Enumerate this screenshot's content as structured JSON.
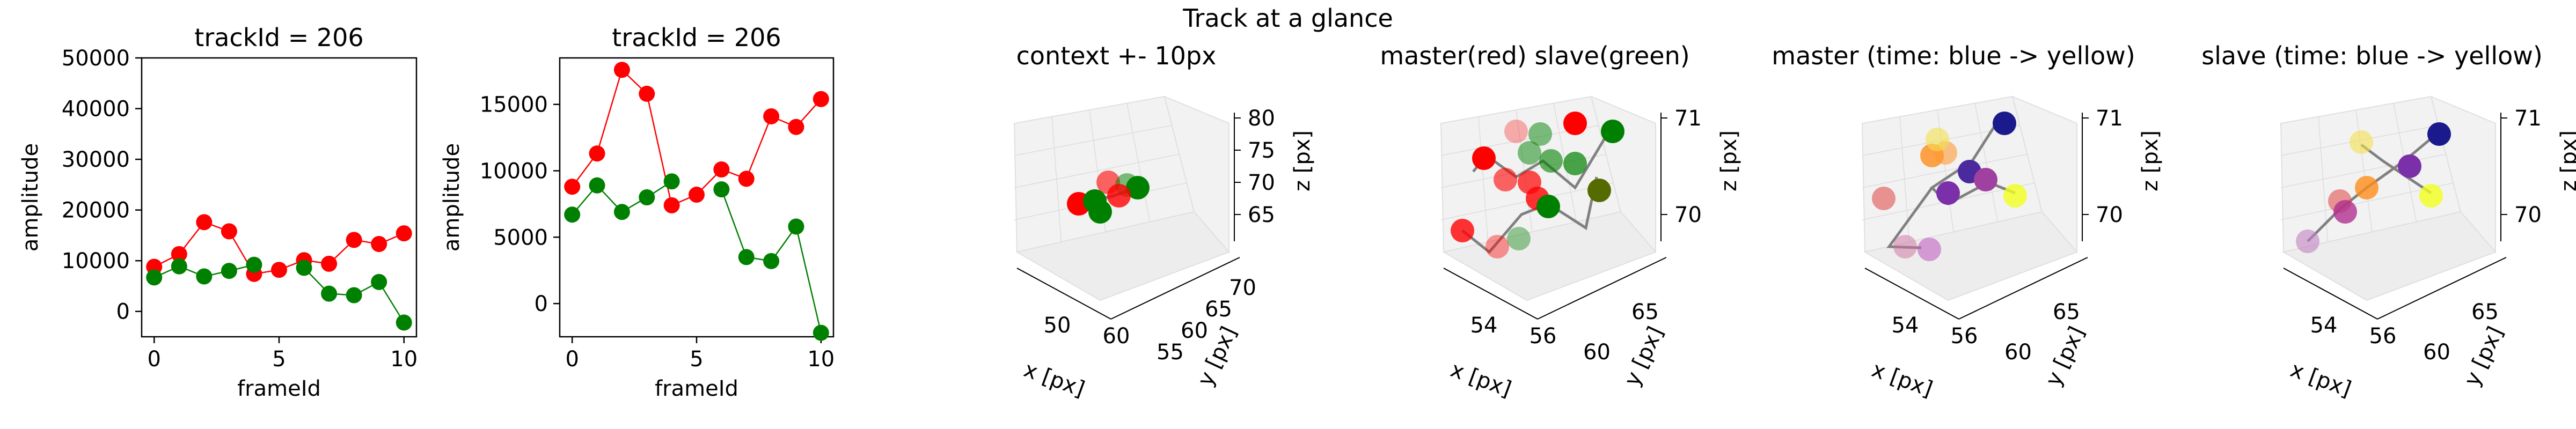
{
  "figure": {
    "suptitle": "Track at a glance"
  },
  "chart_data": [
    {
      "type": "line",
      "title": "trackId = 206",
      "xlabel": "frameId",
      "ylabel": "amplitude",
      "xlim": [
        -0.5,
        10.5
      ],
      "ylim": [
        -5000,
        50000
      ],
      "x_ticks": [
        0,
        5,
        10
      ],
      "y_ticks": [
        0,
        10000,
        20000,
        30000,
        40000,
        50000
      ],
      "x": [
        0,
        1,
        2,
        3,
        4,
        5,
        6,
        7,
        8,
        9,
        10
      ],
      "series": [
        {
          "color": "#ff0000",
          "values": [
            8800,
            11300,
            17600,
            15800,
            7400,
            8200,
            10100,
            9400,
            14100,
            13300,
            15400
          ]
        },
        {
          "color": "#008000",
          "values": [
            6700,
            8900,
            6900,
            8000,
            9200,
            null,
            8600,
            3500,
            3200,
            5800,
            -2200
          ]
        }
      ]
    },
    {
      "type": "line",
      "title": "trackId = 206",
      "xlabel": "frameId",
      "ylabel": "amplitude",
      "xlim": [
        -0.5,
        10.5
      ],
      "ylim": [
        -2500,
        18500
      ],
      "x_ticks": [
        0,
        5,
        10
      ],
      "y_ticks": [
        0,
        5000,
        10000,
        15000
      ],
      "x": [
        0,
        1,
        2,
        3,
        4,
        5,
        6,
        7,
        8,
        9,
        10
      ],
      "series": [
        {
          "color": "#ff0000",
          "values": [
            8800,
            11300,
            17600,
            15800,
            7400,
            8200,
            10100,
            9400,
            14100,
            13300,
            15400
          ]
        },
        {
          "color": "#008000",
          "values": [
            6700,
            8900,
            6900,
            8000,
            9200,
            null,
            8600,
            3500,
            3200,
            5800,
            -2200
          ]
        }
      ]
    },
    {
      "type": "scatter3d",
      "title": "context +- 10px",
      "xlabel": "x [px]",
      "ylabel": "y [px]",
      "zlabel": "z [px]",
      "x_ticks": [
        "50",
        "60"
      ],
      "y_ticks": [
        "55",
        "60",
        "65",
        "70"
      ],
      "z_ticks": [
        "65",
        "70",
        "75",
        "80"
      ],
      "points": [
        {
          "color": "#ff0000",
          "alpha": 1.0
        },
        {
          "color": "#ff0000",
          "alpha": 0.6
        },
        {
          "color": "#008000",
          "alpha": 1.0
        },
        {
          "color": "#008000",
          "alpha": 0.5
        },
        {
          "color": "#008000",
          "alpha": 1.0
        },
        {
          "color": "#ff0000",
          "alpha": 0.8
        }
      ]
    },
    {
      "type": "scatter3d",
      "title": "master(red) slave(green)",
      "xlabel": "x [px]",
      "ylabel": "y [px]",
      "zlabel": "z [px]",
      "x_ticks": [
        "54",
        "56"
      ],
      "y_ticks": [
        "60",
        "65"
      ],
      "z_ticks": [
        "70",
        "71"
      ]
    },
    {
      "type": "scatter3d",
      "title": "master (time: blue -> yellow)",
      "xlabel": "x [px]",
      "ylabel": "y [px]",
      "zlabel": "z [px]",
      "x_ticks": [
        "54",
        "56"
      ],
      "y_ticks": [
        "60",
        "65"
      ],
      "z_ticks": [
        "70",
        "71"
      ]
    },
    {
      "type": "scatter3d",
      "title": "slave (time: blue -> yellow)",
      "xlabel": "x [px]",
      "ylabel": "y [px]",
      "zlabel": "z [px]",
      "x_ticks": [
        "54",
        "56"
      ],
      "y_ticks": [
        "60",
        "65"
      ],
      "z_ticks": [
        "70",
        "71"
      ]
    }
  ]
}
